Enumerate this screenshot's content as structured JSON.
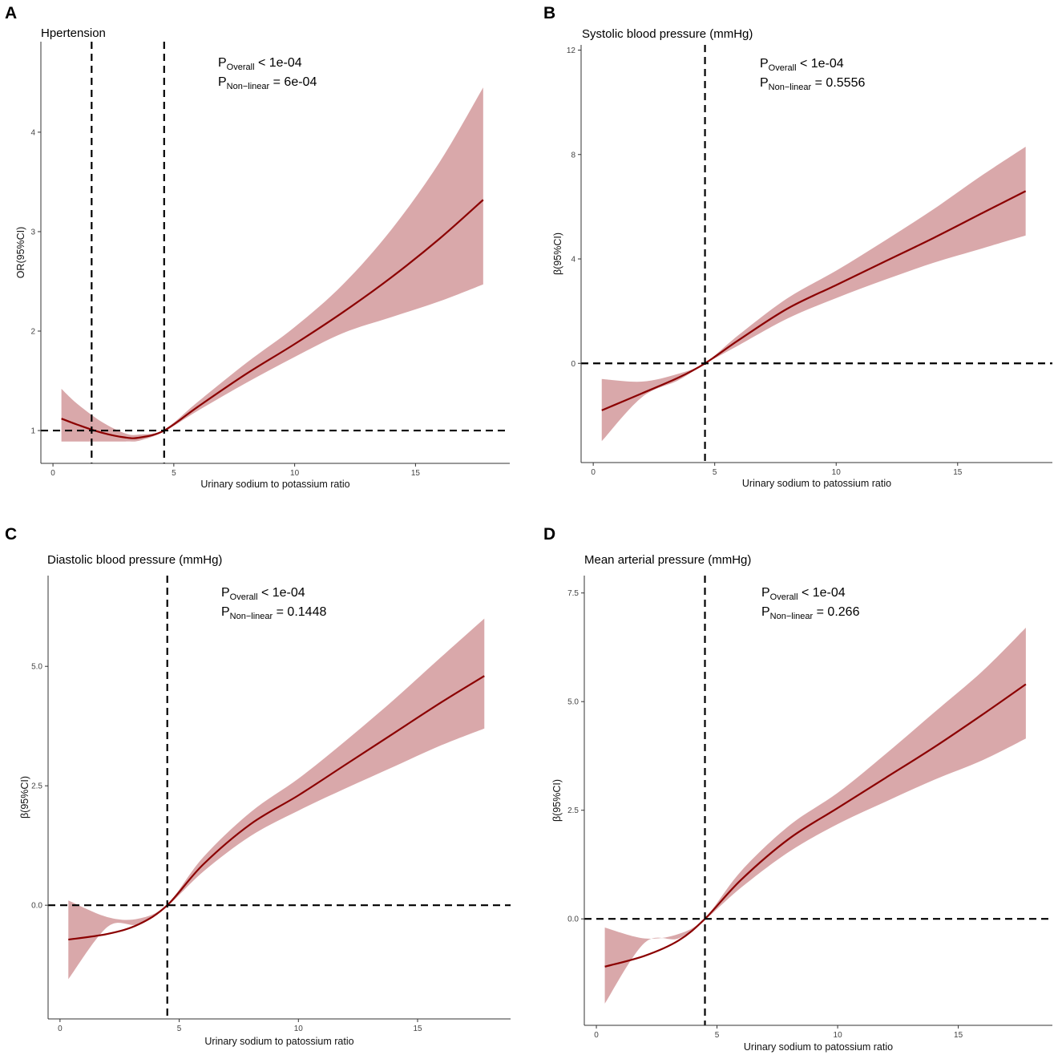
{
  "colors": {
    "band": "#d9a8aa",
    "line": "#8b0000",
    "axis": "#333333",
    "ref": "#000000"
  },
  "chart_data": [
    {
      "panel_label": "A",
      "type": "line",
      "title": "Hpertension",
      "xlabel": "Urinary sodium to potassium ratio",
      "ylabel": "OR(95%CI)",
      "xlim": [
        -0.5,
        18.9
      ],
      "ylim": [
        0.67,
        4.91
      ],
      "xticks": [
        0,
        5,
        10,
        15
      ],
      "yticks": [
        1,
        2,
        3,
        4
      ],
      "ytick_labels": [
        "1",
        "2",
        "3",
        "4"
      ],
      "vlines": [
        1.6,
        4.6
      ],
      "hline": 1,
      "annotation": {
        "p1_sub": "Overall",
        "p1_rest": " < 1e-04",
        "p2_sub": "Non−linear",
        "p2_rest": " = 6e-04"
      },
      "x": [
        0.35,
        1,
        2,
        3,
        3.6,
        4.6,
        6,
        8,
        10,
        12,
        14,
        16,
        17.8
      ],
      "y": [
        1.12,
        1.06,
        0.98,
        0.93,
        0.93,
        1.0,
        1.24,
        1.57,
        1.87,
        2.19,
        2.54,
        2.93,
        3.32
      ],
      "lower": [
        0.89,
        0.89,
        0.89,
        0.89,
        0.9,
        0.99,
        1.2,
        1.48,
        1.74,
        1.98,
        2.14,
        2.3,
        2.47
      ],
      "upper": [
        1.42,
        1.27,
        1.09,
        0.97,
        0.96,
        1.01,
        1.29,
        1.68,
        2.04,
        2.47,
        3.02,
        3.7,
        4.45
      ]
    },
    {
      "panel_label": "B",
      "type": "line",
      "title": "Systolic blood pressure (mmHg)",
      "xlabel": "Urinary sodium to patossium ratio",
      "ylabel": "β(95%CI)",
      "xlim": [
        -0.5,
        18.9
      ],
      "ylim": [
        -3.8,
        12.2
      ],
      "xticks": [
        0,
        5,
        10,
        15
      ],
      "yticks": [
        0,
        4,
        8,
        12
      ],
      "ytick_labels": [
        "0",
        "4",
        "8",
        "12"
      ],
      "vlines": [
        4.6
      ],
      "hline": 0,
      "annotation": {
        "p1_sub": "Overall",
        "p1_rest": " < 1e-04",
        "p2_sub": "Non−linear",
        "p2_rest": " = 0.5556"
      },
      "x": [
        0.35,
        2,
        3.5,
        4.6,
        6,
        8,
        10,
        12,
        14,
        16,
        17.8
      ],
      "y": [
        -1.8,
        -1.15,
        -0.55,
        0.0,
        0.9,
        2.1,
        3.0,
        3.9,
        4.8,
        5.75,
        6.6
      ],
      "lower": [
        -2.98,
        -1.3,
        -0.65,
        -0.02,
        0.7,
        1.72,
        2.5,
        3.2,
        3.85,
        4.4,
        4.9
      ],
      "upper": [
        -0.6,
        -0.7,
        -0.4,
        0.02,
        1.1,
        2.5,
        3.55,
        4.7,
        5.9,
        7.2,
        8.3
      ]
    },
    {
      "panel_label": "C",
      "type": "line",
      "title": "Diastolic blood pressure (mmHg)",
      "xlabel": "Urinary sodium to patossium ratio",
      "ylabel": "β(95%CI)",
      "xlim": [
        -0.5,
        18.9
      ],
      "ylim": [
        -2.38,
        6.9
      ],
      "xticks": [
        0,
        5,
        10,
        15
      ],
      "yticks": [
        0,
        2.5,
        5
      ],
      "ytick_labels": [
        "0.0",
        "2.5",
        "5.0"
      ],
      "vlines": [
        4.5
      ],
      "hline": 0,
      "annotation": {
        "p1_sub": "Overall",
        "p1_rest": " < 1e-04",
        "p2_sub": "Non−linear",
        "p2_rest": " = 0.1448"
      },
      "x": [
        0.35,
        2,
        3.3,
        4.5,
        6,
        8,
        10,
        12,
        14,
        16,
        17.8
      ],
      "y": [
        -0.72,
        -0.6,
        -0.4,
        0.0,
        0.85,
        1.7,
        2.3,
        2.95,
        3.6,
        4.25,
        4.8
      ],
      "lower": [
        -1.55,
        -0.45,
        -0.4,
        -0.02,
        0.7,
        1.45,
        1.98,
        2.45,
        2.9,
        3.35,
        3.7
      ],
      "upper": [
        0.1,
        -0.25,
        -0.28,
        0.02,
        1.0,
        1.95,
        2.65,
        3.45,
        4.3,
        5.2,
        6.0
      ]
    },
    {
      "panel_label": "D",
      "type": "line",
      "title": "Mean arterial pressure (mmHg)",
      "xlabel": "Urinary sodium to patossium ratio",
      "ylabel": "β(95%CI)",
      "xlim": [
        -0.5,
        18.9
      ],
      "ylim": [
        -2.45,
        7.9
      ],
      "xticks": [
        0,
        5,
        10,
        15
      ],
      "yticks": [
        0,
        2.5,
        5,
        7.5
      ],
      "ytick_labels": [
        "0.0",
        "2.5",
        "5.0",
        "7.5"
      ],
      "vlines": [
        4.5
      ],
      "hline": 0,
      "annotation": {
        "p1_sub": "Overall",
        "p1_rest": " < 1e-04",
        "p2_sub": "Non−linear",
        "p2_rest": " = 0.266"
      },
      "x": [
        0.35,
        2,
        3.4,
        4.5,
        6,
        8,
        10,
        12,
        14,
        16,
        17.8
      ],
      "y": [
        -1.1,
        -0.85,
        -0.5,
        0.0,
        0.9,
        1.85,
        2.55,
        3.25,
        3.95,
        4.7,
        5.4
      ],
      "lower": [
        -1.95,
        -0.55,
        -0.45,
        -0.02,
        0.72,
        1.55,
        2.18,
        2.7,
        3.2,
        3.65,
        4.15
      ],
      "upper": [
        -0.2,
        -0.45,
        -0.35,
        0.02,
        1.1,
        2.15,
        2.9,
        3.8,
        4.75,
        5.7,
        6.7
      ]
    }
  ]
}
